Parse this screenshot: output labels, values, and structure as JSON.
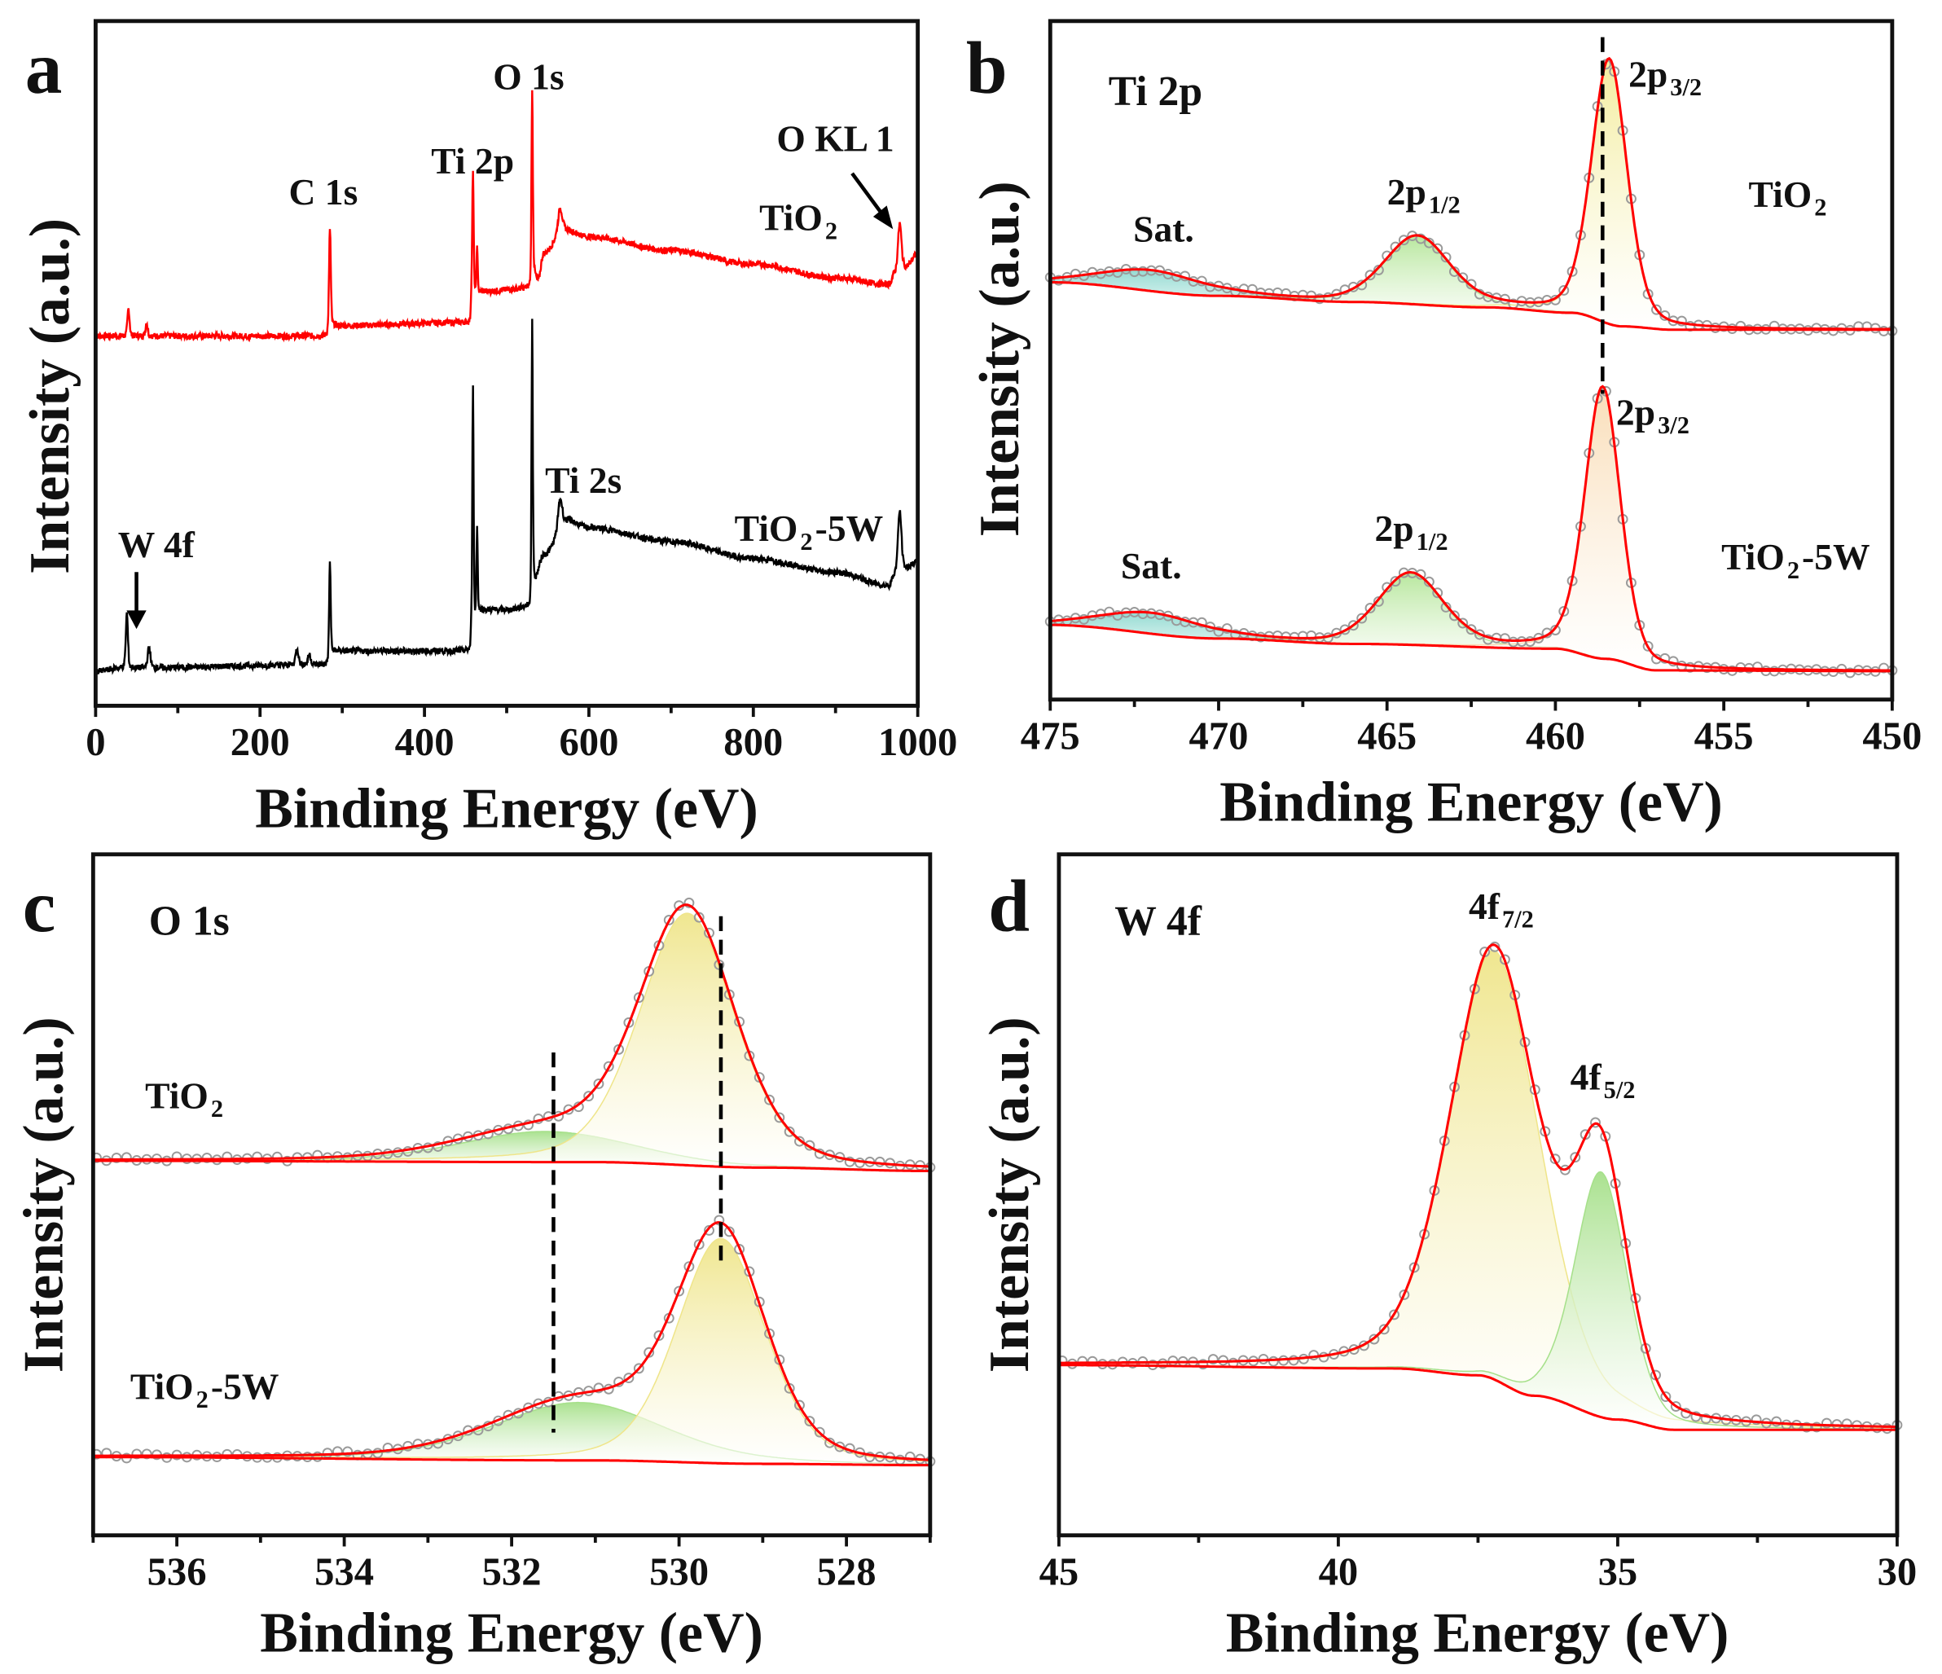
{
  "chart_data": [
    {
      "panel_label": "a",
      "type": "line",
      "xlabel": "Binding Energy (eV)",
      "ylabel": "Intensity (a.u.)",
      "xlim": [
        0,
        1000
      ],
      "ylim": [
        0,
        100
      ],
      "ticks": [
        "0",
        "200",
        "400",
        "600",
        "800",
        "1000"
      ],
      "tick_values": [
        0,
        200,
        400,
        600,
        800,
        1000
      ],
      "minor_step": 100,
      "grid": false,
      "annotations": [
        {
          "text": "C 1s"
        },
        {
          "text": "Ti 2p"
        },
        {
          "text": "O 1s"
        },
        {
          "text": "O KL 1"
        },
        {
          "text": "TiO",
          "sub": "2",
          "suffix": ""
        },
        {
          "text": "Ti 2s"
        },
        {
          "text": "W 4f"
        },
        {
          "text": "TiO",
          "sub": "2",
          "suffix": "-5W"
        }
      ],
      "series": [
        {
          "name": "TiO2",
          "color": "#ff0000",
          "baseline": [
            [
              0,
              54
            ],
            [
              30,
              54
            ],
            [
              280,
              54
            ],
            [
              290,
              55.5
            ],
            [
              455,
              56
            ],
            [
              458,
              61
            ],
            [
              462,
              59.5
            ],
            [
              470,
              60.5
            ],
            [
              528,
              61
            ],
            [
              533,
              63
            ],
            [
              538,
              62
            ],
            [
              545,
              66
            ],
            [
              570,
              69.5
            ],
            [
              600,
              68.5
            ],
            [
              700,
              66.5
            ],
            [
              800,
              64.5
            ],
            [
              900,
              62.5
            ],
            [
              965,
              61.5
            ],
            [
              972,
              63
            ],
            [
              985,
              64
            ],
            [
              1000,
              66
            ]
          ],
          "peaks": [
            [
              40,
              4,
              3
            ],
            [
              62,
              2,
              3
            ],
            [
              285,
              15,
              2.5
            ],
            [
              459,
              17,
              2
            ],
            [
              464,
              7,
              2
            ],
            [
              531,
              28,
              2
            ],
            [
              565,
              3.5,
              6
            ],
            [
              978,
              7,
              5
            ]
          ]
        },
        {
          "name": "TiO2-5W",
          "color": "#000000",
          "baseline": [
            [
              0,
              5
            ],
            [
              30,
              5.5
            ],
            [
              280,
              6
            ],
            [
              290,
              8
            ],
            [
              455,
              8
            ],
            [
              458,
              12
            ],
            [
              470,
              14
            ],
            [
              500,
              14
            ],
            [
              528,
              14.5
            ],
            [
              533,
              18
            ],
            [
              545,
              22
            ],
            [
              575,
              27
            ],
            [
              600,
              26
            ],
            [
              700,
              24
            ],
            [
              800,
              21.5
            ],
            [
              900,
              19.5
            ],
            [
              965,
              17.5
            ],
            [
              972,
              19
            ],
            [
              985,
              20
            ],
            [
              1000,
              21
            ]
          ],
          "peaks": [
            [
              38,
              8,
              3
            ],
            [
              65,
              3,
              4
            ],
            [
              245,
              2.5,
              4
            ],
            [
              260,
              1.5,
              4
            ],
            [
              285,
              14,
              2.2
            ],
            [
              459,
              35,
              1.8
            ],
            [
              464,
              13,
              1.8
            ],
            [
              531,
              40,
              1.8
            ],
            [
              565,
              4.5,
              6
            ],
            [
              978,
              9,
              5
            ]
          ]
        }
      ]
    },
    {
      "panel_label": "b",
      "type": "line",
      "xlabel": "Binding Energy (eV)",
      "ylabel": "Intensity (a.u.)",
      "xlim": [
        475,
        450
      ],
      "ylim": [
        0,
        100
      ],
      "ticks": [
        "475",
        "470",
        "465",
        "460",
        "455",
        "450"
      ],
      "tick_values": [
        475,
        470,
        465,
        460,
        455,
        450
      ],
      "minor_step": 2.5,
      "grid": false,
      "reference_lines": [
        458.6
      ],
      "annotations": [
        {
          "text": "Ti 2p"
        },
        {
          "text": "Sat."
        },
        {
          "text": "2p",
          "sub": "1/2"
        },
        {
          "text": "2p",
          "sub": "3/2"
        },
        {
          "text": "TiO",
          "sub": "2",
          "suffix": ""
        },
        {
          "text": "Sat."
        },
        {
          "text": "2p",
          "sub": "1/2"
        },
        {
          "text": "2p",
          "sub": "3/2"
        },
        {
          "text": "TiO",
          "sub": "2",
          "suffix": "-5W"
        }
      ],
      "series": [
        {
          "name": "TiO2",
          "color": "#ff0000",
          "baseline": [
            [
              475,
              61.5
            ],
            [
              470,
              59.5
            ],
            [
              466,
              58.6
            ],
            [
              462,
              57.8
            ],
            [
              459.5,
              57
            ],
            [
              458,
              55
            ],
            [
              456.5,
              54.5
            ],
            [
              450,
              54.5
            ]
          ],
          "peaks": [
            [
              472,
              3,
              3.5,
              "#8fd9d0"
            ],
            [
              464.1,
              10,
              2.3,
              "#b5e69a"
            ],
            [
              458.4,
              39,
              1.25,
              "#f3ec9a"
            ]
          ]
        },
        {
          "name": "TiO2-5W",
          "color": "#ff0000",
          "baseline": [
            [
              475,
              11
            ],
            [
              470,
              9
            ],
            [
              466,
              8.2
            ],
            [
              460,
              7.5
            ],
            [
              458.5,
              6
            ],
            [
              457,
              4.3
            ],
            [
              450,
              4.2
            ]
          ],
          "peaks": [
            [
              472,
              3,
              3.5,
              "#8fd9d0"
            ],
            [
              464.3,
              10.5,
              2.3,
              "#b5e69a"
            ],
            [
              458.6,
              40,
              1.25,
              "#f9dcb5"
            ]
          ]
        }
      ]
    },
    {
      "panel_label": "c",
      "type": "line",
      "xlabel": "Binding Energy (eV)",
      "ylabel": "Intensity (a.u.)",
      "xlim": [
        537,
        527
      ],
      "ylim": [
        0,
        100
      ],
      "ticks": [
        "536",
        "534",
        "532",
        "530",
        "528"
      ],
      "tick_values": [
        536,
        534,
        532,
        530,
        528
      ],
      "minor_step": 1,
      "grid": false,
      "reference_lines": [
        529.5,
        531.5
      ],
      "annotations": [
        {
          "text": "O 1s"
        },
        {
          "text": "TiO",
          "sub": "2",
          "suffix": ""
        },
        {
          "text": "TiO",
          "sub": "2",
          "suffix": "-5W"
        }
      ],
      "series": [
        {
          "name": "TiO2",
          "color": "#ff0000",
          "baseline": [
            [
              537,
              55
            ],
            [
              531,
              54.8
            ],
            [
              529,
              54
            ],
            [
              527,
              53.5
            ]
          ],
          "peaks": [
            [
              531.6,
              4.5,
              2.4,
              "#a6e08a"
            ],
            [
              529.9,
              37,
              1.35,
              "#efe58a"
            ]
          ]
        },
        {
          "name": "TiO2-5W",
          "color": "#ff0000",
          "baseline": [
            [
              537,
              11.5
            ],
            [
              531,
              11
            ],
            [
              529,
              10.5
            ],
            [
              527,
              10.3
            ]
          ],
          "peaks": [
            [
              531.2,
              8.5,
              2.4,
              "#a6e08a"
            ],
            [
              529.5,
              33,
              1.25,
              "#efe58a"
            ]
          ]
        }
      ]
    },
    {
      "panel_label": "d",
      "type": "line",
      "xlabel": "Binding Energy (eV)",
      "ylabel": "Intensity (a.u.)",
      "xlim": [
        45,
        30
      ],
      "ylim": [
        0,
        100
      ],
      "ticks": [
        "45",
        "40",
        "35",
        "30"
      ],
      "tick_values": [
        45,
        40,
        35,
        30
      ],
      "minor_step": 2.5,
      "grid": false,
      "annotations": [
        {
          "text": "W 4f"
        },
        {
          "text": "4f",
          "sub": "7/2"
        },
        {
          "text": "4f",
          "sub": "5/2"
        }
      ],
      "series": [
        {
          "name": "TiO2-5W",
          "color": "#ff0000",
          "baseline": [
            [
              45,
              25
            ],
            [
              39,
              24.5
            ],
            [
              37.5,
              23.5
            ],
            [
              36.5,
              20.5
            ],
            [
              35,
              17
            ],
            [
              34,
              15.5
            ],
            [
              30,
              15.5
            ]
          ],
          "peaks": [
            [
              37.2,
              63,
              1.9,
              "#efe58a"
            ],
            [
              35.3,
              36,
              1.1,
              "#a6e08a"
            ]
          ]
        }
      ]
    }
  ]
}
